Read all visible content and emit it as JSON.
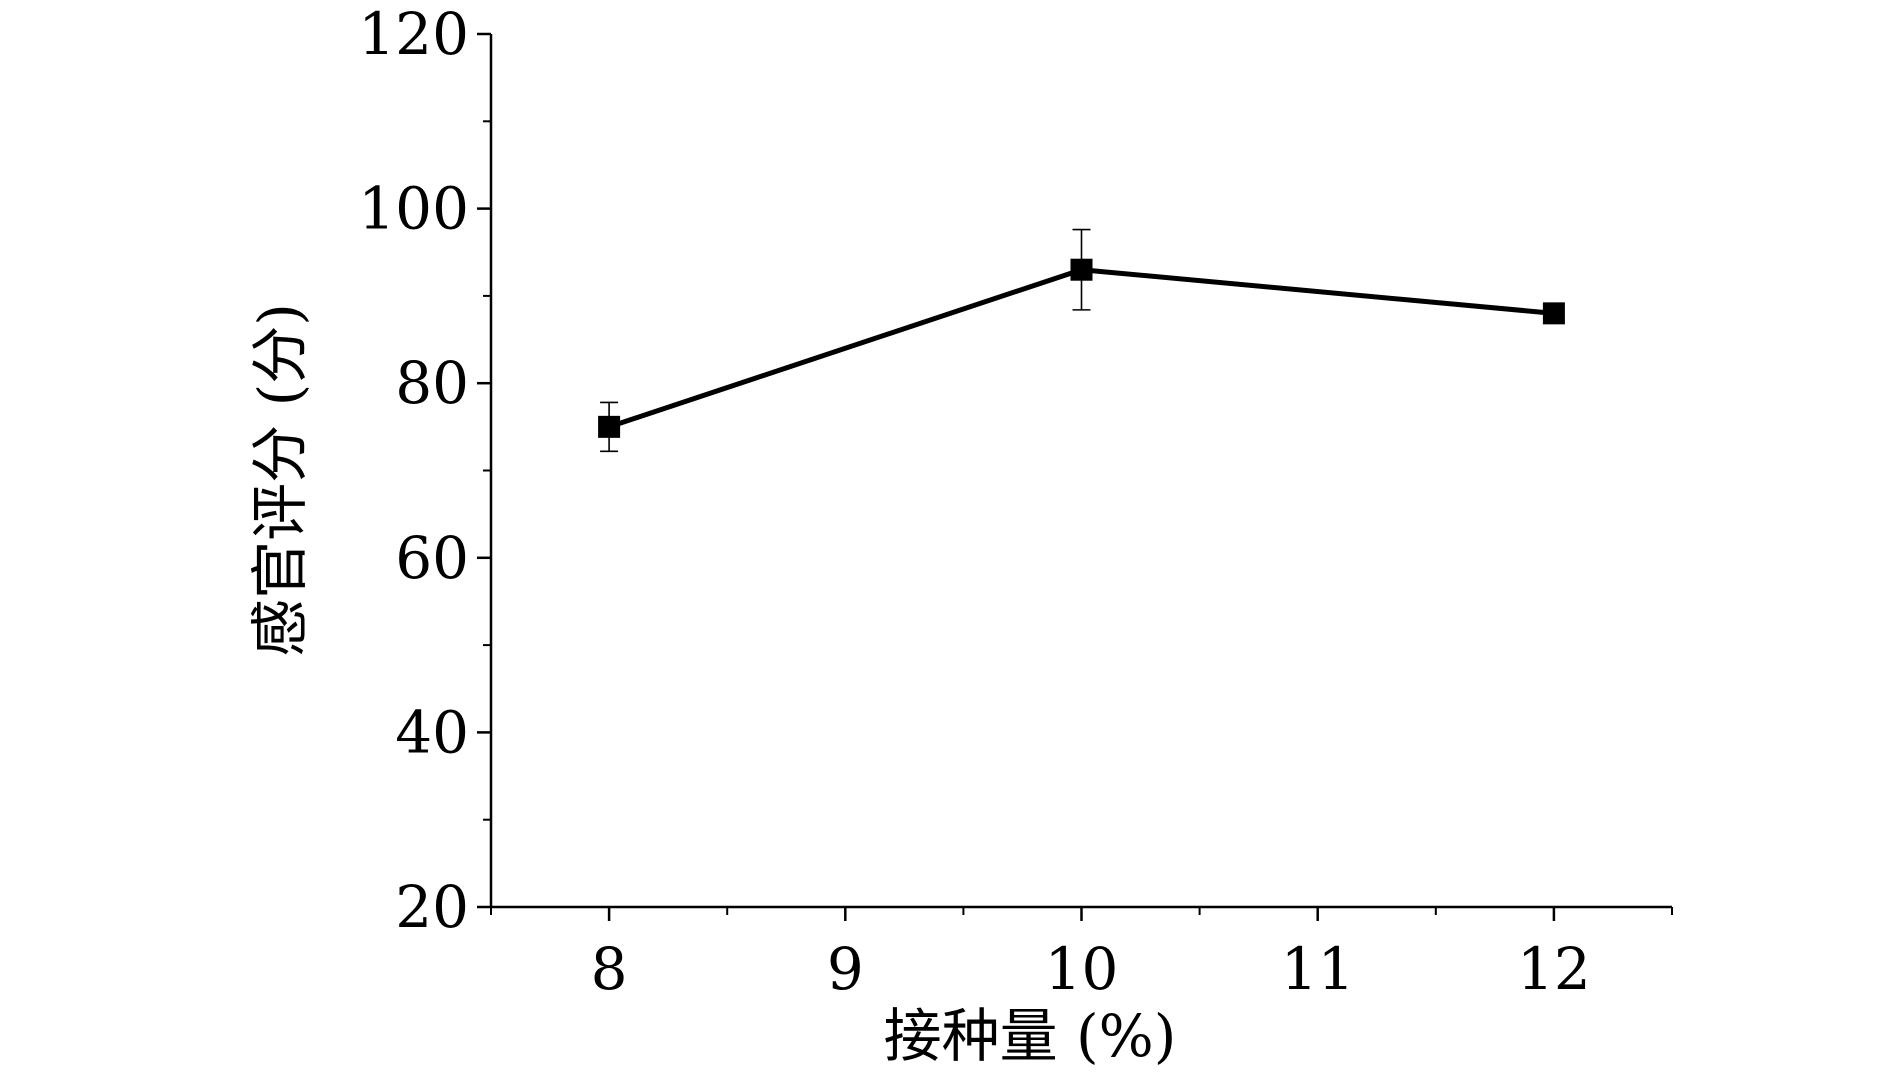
{
  "chart_data": {
    "type": "line",
    "title": "",
    "xlabel": "接种量 (%)",
    "ylabel": "感官评分 (分)",
    "xlim": [
      7.5,
      12.5
    ],
    "ylim": [
      20,
      120
    ],
    "x_ticks": [
      8,
      9,
      10,
      11,
      12
    ],
    "x_tick_labels": [
      "8",
      "9",
      "10",
      "11",
      "12"
    ],
    "y_ticks": [
      20,
      40,
      60,
      80,
      100,
      120
    ],
    "y_tick_labels": [
      "20",
      "40",
      "60",
      "80",
      "100",
      "120"
    ],
    "grid": false,
    "legend": "none",
    "series": [
      {
        "x": [
          8,
          10,
          12
        ],
        "y": [
          75,
          93,
          88
        ],
        "error": [
          2.8,
          4.6,
          0.9
        ],
        "color": "#000000",
        "marker": "square"
      }
    ]
  }
}
